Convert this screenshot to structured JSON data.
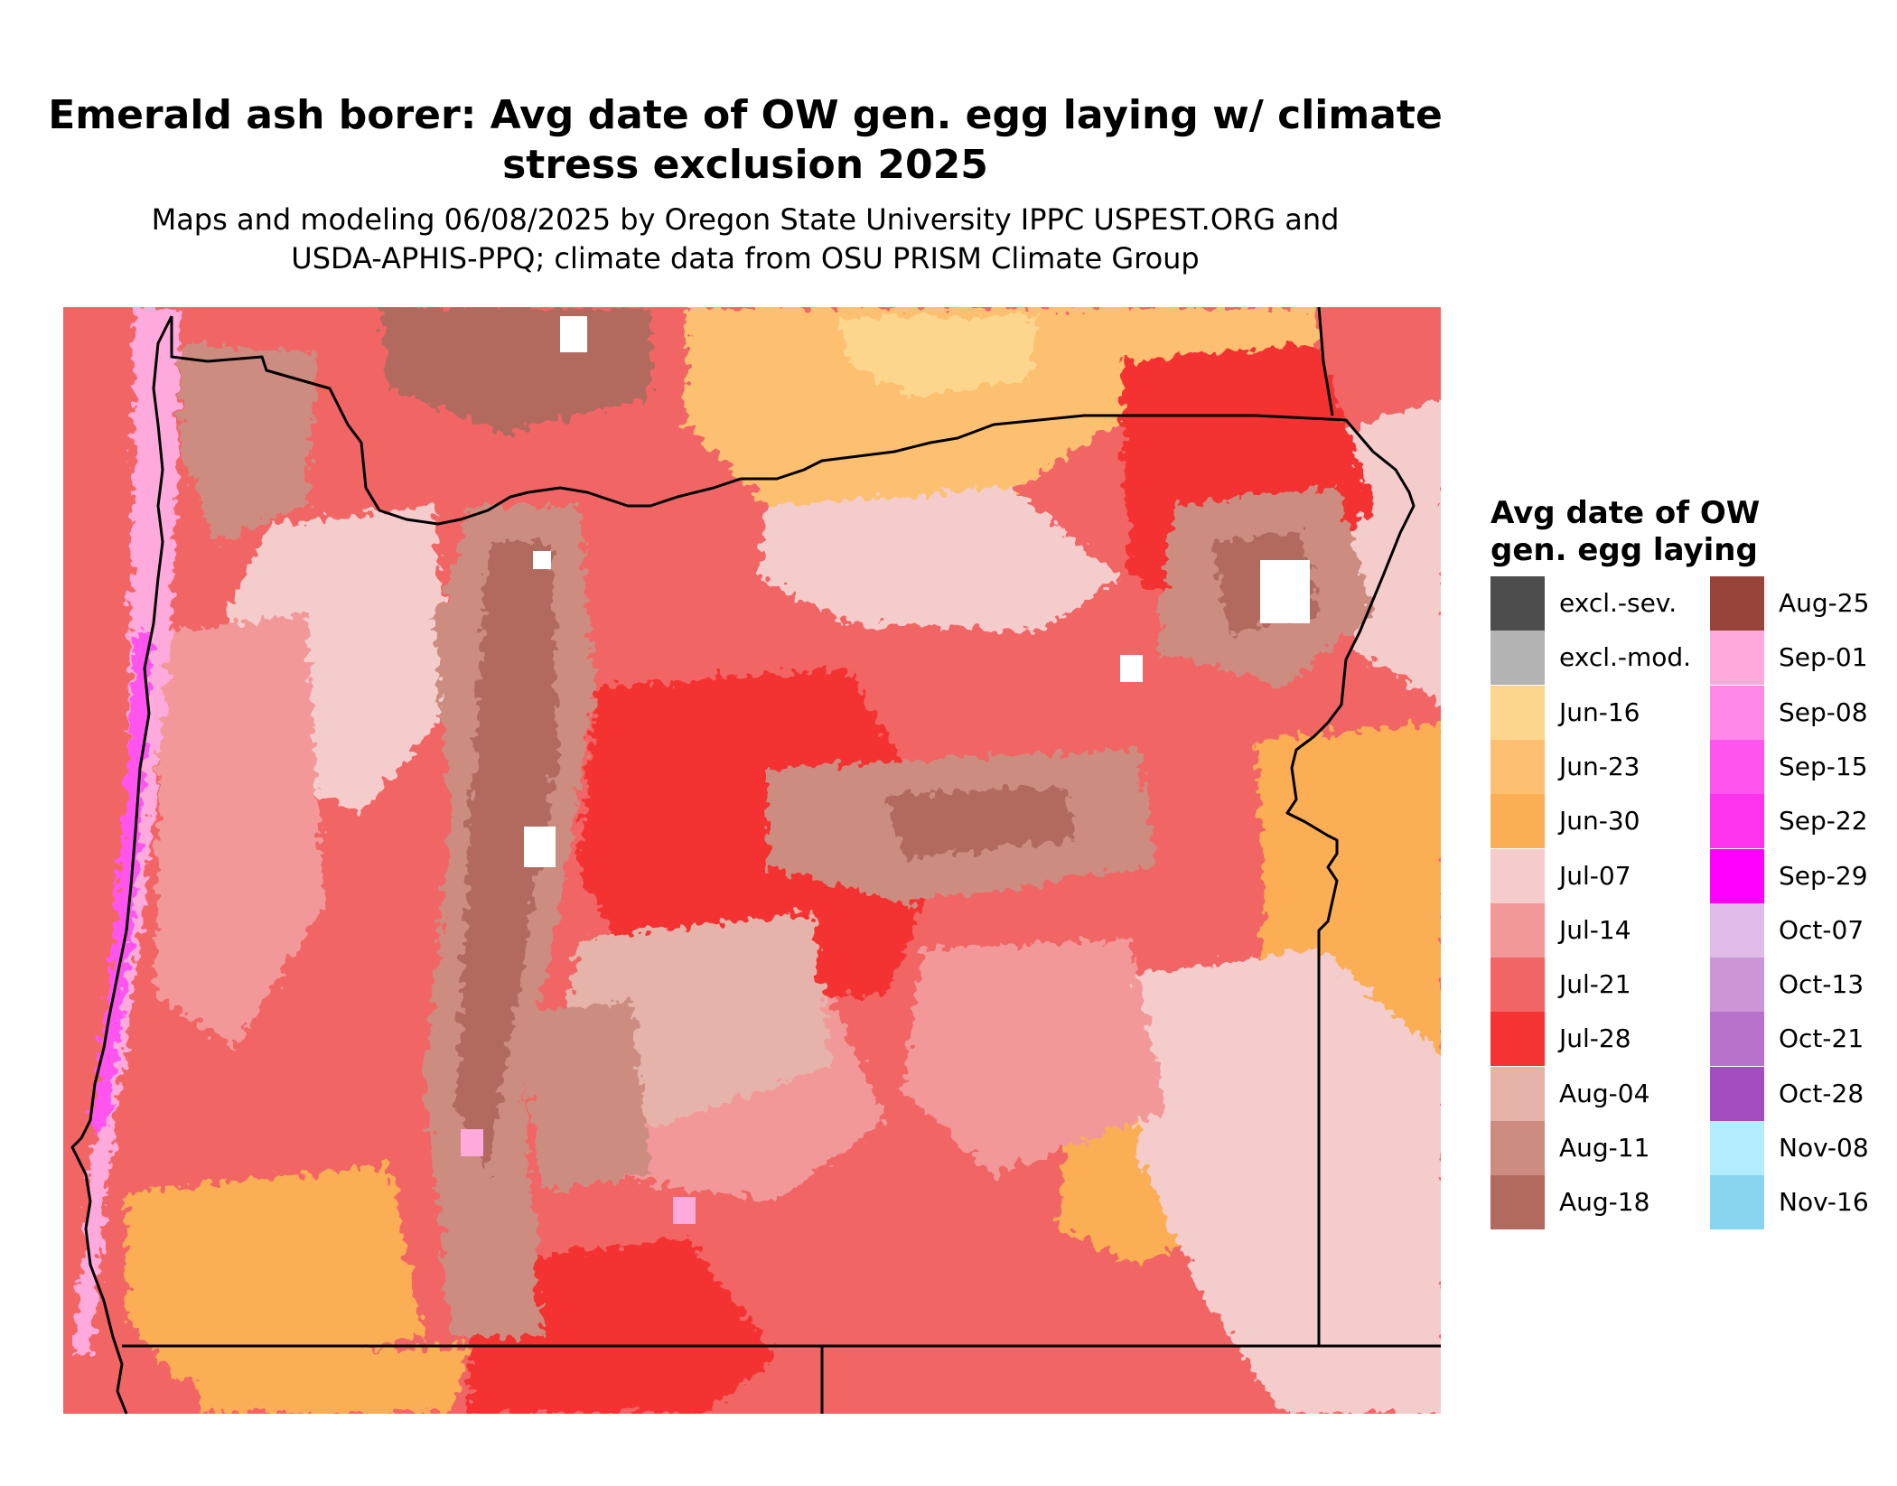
{
  "title": "Emerald ash borer: Avg date of OW gen. egg laying w/ climate\nstress exclusion 2025",
  "subtitle": "Maps and modeling 06/08/2025 by Oregon State University IPPC USPEST.ORG and\nUSDA-APHIS-PPQ; climate data from OSU PRISM Climate Group",
  "legend": {
    "title": "Avg date of OW\ngen. egg laying",
    "items": [
      {
        "label": "excl.-sev.",
        "color": "#4d4d4d"
      },
      {
        "label": "excl.-mod.",
        "color": "#b3b3b3"
      },
      {
        "label": "Jun-16",
        "color": "#fdd68e"
      },
      {
        "label": "Jun-23",
        "color": "#fdc070"
      },
      {
        "label": "Jun-30",
        "color": "#fcae55"
      },
      {
        "label": "Jul-07",
        "color": "#f4cccc"
      },
      {
        "label": "Jul-14",
        "color": "#f29898"
      },
      {
        "label": "Jul-21",
        "color": "#f26565"
      },
      {
        "label": "Jul-28",
        "color": "#f53333"
      },
      {
        "label": "Aug-04",
        "color": "#e5b3aa"
      },
      {
        "label": "Aug-11",
        "color": "#cc8d80"
      },
      {
        "label": "Aug-18",
        "color": "#b26a5e"
      },
      {
        "label": "Aug-25",
        "color": "#99443a"
      },
      {
        "label": "Sep-01",
        "color": "#ffaadd"
      },
      {
        "label": "Sep-08",
        "color": "#ff88e8"
      },
      {
        "label": "Sep-15",
        "color": "#ff55ee"
      },
      {
        "label": "Sep-22",
        "color": "#ff33ee"
      },
      {
        "label": "Sep-29",
        "color": "#ff00ff"
      },
      {
        "label": "Oct-07",
        "color": "#e0bbe8"
      },
      {
        "label": "Oct-13",
        "color": "#cc95d8"
      },
      {
        "label": "Oct-21",
        "color": "#b772cc"
      },
      {
        "label": "Oct-28",
        "color": "#a34dc0"
      },
      {
        "label": "Nov-08",
        "color": "#b3ecff"
      },
      {
        "label": "Nov-16",
        "color": "#88d5f0"
      }
    ]
  },
  "map": {
    "region": "Oregon",
    "background_color": "#f26565",
    "boundary_color": "#000000"
  }
}
